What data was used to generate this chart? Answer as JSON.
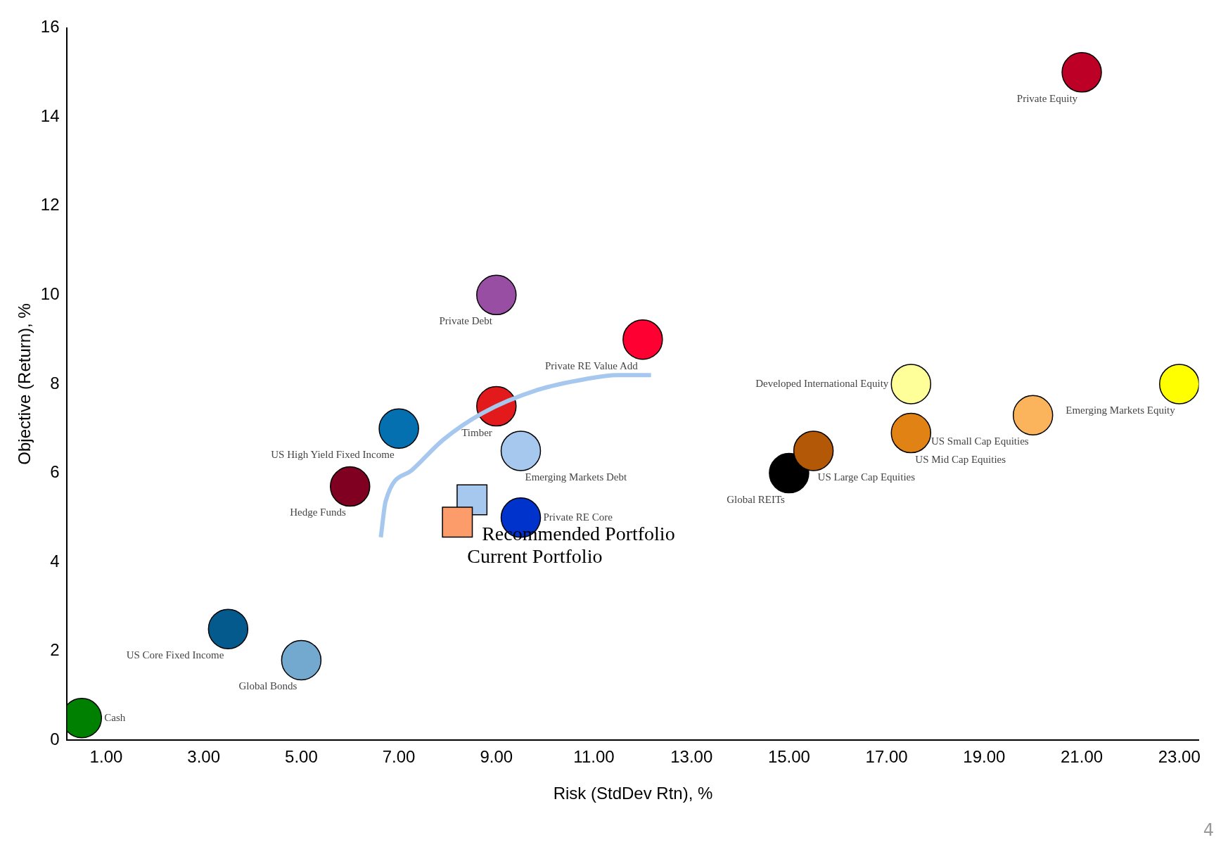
{
  "chart_data": {
    "type": "scatter",
    "xlabel": "Risk (StdDev Rtn), %",
    "ylabel": "Objective (Return), %",
    "xlim": [
      0.2,
      23.4
    ],
    "ylim": [
      0,
      16
    ],
    "xticks": [
      {
        "value": 1,
        "label": "1.00"
      },
      {
        "value": 3,
        "label": "3.00"
      },
      {
        "value": 5,
        "label": "5.00"
      },
      {
        "value": 7,
        "label": "7.00"
      },
      {
        "value": 9,
        "label": "9.00"
      },
      {
        "value": 11,
        "label": "11.00"
      },
      {
        "value": 13,
        "label": "13.00"
      },
      {
        "value": 15,
        "label": "15.00"
      },
      {
        "value": 17,
        "label": "17.00"
      },
      {
        "value": 19,
        "label": "19.00"
      },
      {
        "value": 21,
        "label": "21.00"
      },
      {
        "value": 23,
        "label": "23.00"
      }
    ],
    "yticks": [
      0,
      2,
      4,
      6,
      8,
      10,
      12,
      14,
      16
    ],
    "grid": false,
    "legend": false,
    "marker": "circle",
    "annotations": [
      "4"
    ],
    "series": [
      {
        "type": "line",
        "color": "#a6c8ee",
        "marker": "none",
        "x": [
          6.63,
          6.73,
          7.26,
          7.91,
          8.72,
          9.85,
          10.82,
          11.47,
          12.17
        ],
        "values": [
          4.56,
          5.37,
          6.06,
          6.75,
          7.35,
          7.87,
          8.11,
          8.2,
          8.2
        ]
      },
      {
        "name": "Private Equity",
        "color": "#bd0026",
        "x": [
          21.0
        ],
        "values": [
          15.0
        ]
      },
      {
        "name": "Private Debt",
        "color": "#984ea3",
        "x": [
          9.0
        ],
        "values": [
          10.0
        ]
      },
      {
        "name": "Private RE Value Add",
        "color": "#ff0033",
        "x": [
          12.0
        ],
        "values": [
          9.0
        ]
      },
      {
        "name": "Developed International Equity",
        "color": "#ffff99",
        "x": [
          17.5
        ],
        "values": [
          8.0
        ]
      },
      {
        "name": "Emerging Markets Equity",
        "color": "#ffff00",
        "x": [
          23.0
        ],
        "values": [
          8.0
        ]
      },
      {
        "name": "US Small Cap Equities",
        "color": "#fbb45c",
        "x": [
          20.0
        ],
        "values": [
          7.3
        ]
      },
      {
        "name": "US Mid Cap Equities",
        "color": "#e08214",
        "x": [
          17.5
        ],
        "values": [
          6.9
        ]
      },
      {
        "name": "US Large Cap Equities",
        "color": "#b35806",
        "x": [
          15.5
        ],
        "values": [
          6.5
        ]
      },
      {
        "name": "Global REITs",
        "color": "#000000",
        "x": [
          15.0
        ],
        "values": [
          6.0
        ]
      },
      {
        "name": "Timber",
        "color": "#e31a1c",
        "x": [
          9.0
        ],
        "values": [
          7.5
        ]
      },
      {
        "name": "US High Yield Fixed Income",
        "color": "#0570b0",
        "x": [
          7.0
        ],
        "values": [
          7.0
        ]
      },
      {
        "name": "Emerging Markets Debt",
        "color": "#a6c8ee",
        "x": [
          9.5
        ],
        "values": [
          6.5
        ]
      },
      {
        "name": "Hedge Funds",
        "color": "#7f0020",
        "x": [
          6.0
        ],
        "values": [
          5.7
        ]
      },
      {
        "name": "Private RE Core",
        "color": "#0033cc",
        "x": [
          9.5
        ],
        "values": [
          5.0
        ]
      },
      {
        "name": "US Core Fixed Income",
        "color": "#045a8d",
        "x": [
          3.5
        ],
        "values": [
          2.5
        ]
      },
      {
        "name": "Global Bonds",
        "color": "#74a9cf",
        "x": [
          5.0
        ],
        "values": [
          1.8
        ]
      },
      {
        "name": "Cash",
        "color": "#008000",
        "x": [
          0.5
        ],
        "values": [
          0.5
        ]
      },
      {
        "name": "Current Portfolio",
        "color": "#fc9c6b",
        "marker": "square",
        "x": [
          8.2
        ],
        "values": [
          4.9
        ]
      },
      {
        "name": "Recommended Portfolio",
        "color": "#a6c8ee",
        "marker": "square",
        "x": [
          8.5
        ],
        "values": [
          5.4
        ]
      }
    ]
  }
}
